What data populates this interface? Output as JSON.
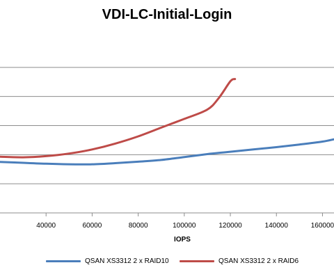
{
  "chart_data": {
    "type": "line",
    "title": "VDI-LC-Initial-Login",
    "xlabel": "IOPS",
    "ylabel": "",
    "xlim": [
      20000,
      165000
    ],
    "ylim": [
      0,
      6
    ],
    "x_ticks": [
      40000,
      60000,
      80000,
      100000,
      120000,
      140000,
      160000
    ],
    "x_tick_labels": [
      "40000",
      "60000",
      "80000",
      "100000",
      "120000",
      "140000",
      "160000"
    ],
    "y_gridlines": [
      1,
      2,
      3,
      4,
      5
    ],
    "grid": "horizontal",
    "legend_position": "bottom",
    "series": [
      {
        "name": "QSAN XS3312 2 x RAID10",
        "color": "#4a7ebb",
        "x": [
          20000,
          30000,
          40000,
          50000,
          60000,
          70000,
          80000,
          90000,
          100000,
          110000,
          120000,
          130000,
          140000,
          150000,
          160000,
          165000
        ],
        "y": [
          1.75,
          1.72,
          1.69,
          1.67,
          1.67,
          1.71,
          1.76,
          1.82,
          1.92,
          2.02,
          2.1,
          2.18,
          2.26,
          2.35,
          2.45,
          2.53
        ]
      },
      {
        "name": "QSAN XS3312 2 x RAID6",
        "color": "#be4b48",
        "x": [
          20000,
          30000,
          40000,
          50000,
          60000,
          70000,
          80000,
          90000,
          100000,
          110000,
          115000,
          120000,
          122000
        ],
        "y": [
          1.93,
          1.91,
          1.95,
          2.04,
          2.18,
          2.38,
          2.63,
          2.93,
          3.23,
          3.55,
          3.95,
          4.52,
          4.6
        ]
      }
    ]
  }
}
